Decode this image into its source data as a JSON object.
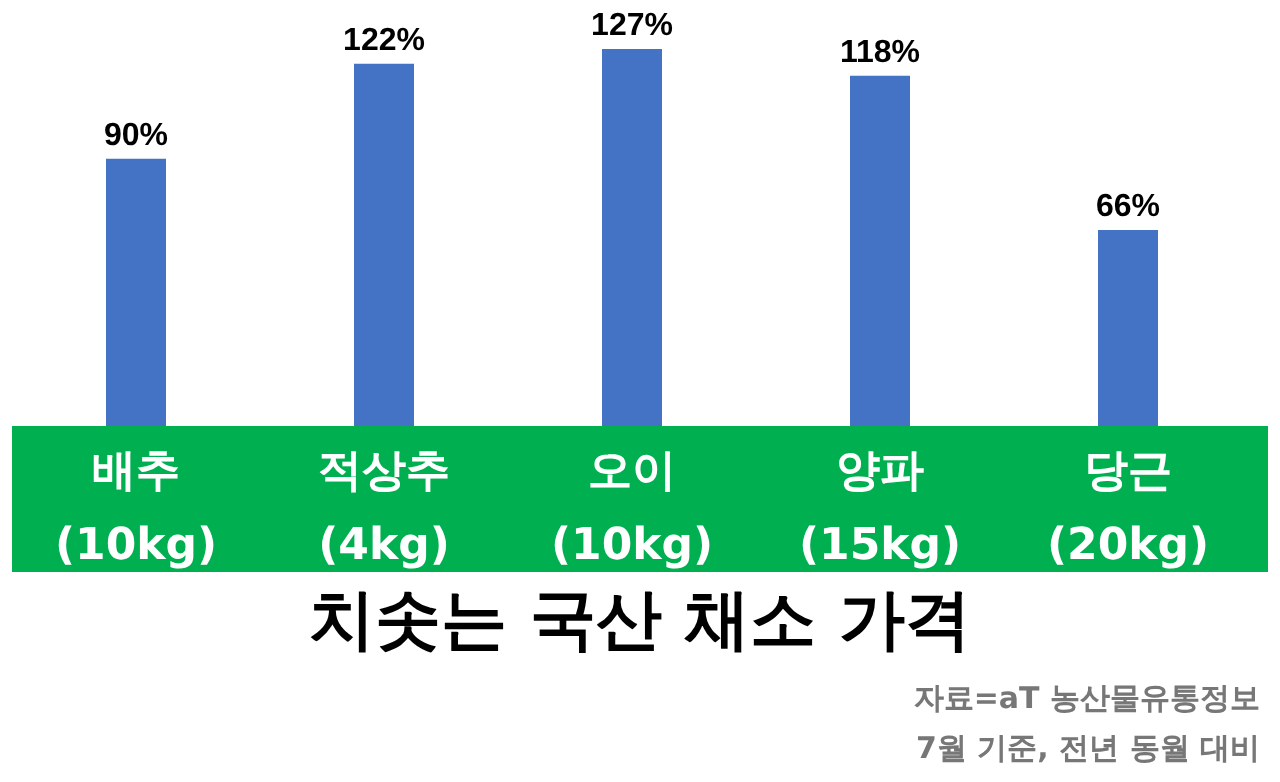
{
  "chart_data": {
    "type": "bar",
    "title": "치솟는 국산 채소 가격",
    "categories": [
      "배추 (10kg)",
      "적상추 (4kg)",
      "오이 (10kg)",
      "양파 (15kg)",
      "당근 (20kg)"
    ],
    "values": [
      90,
      122,
      127,
      118,
      66
    ],
    "value_labels": [
      "90%",
      "122%",
      "127%",
      "118%",
      "66%"
    ],
    "color": "#4472c4",
    "annotations": [
      "자료=aT 농산물유통정보",
      "7월 기준, 전년 동월 대비"
    ]
  }
}
